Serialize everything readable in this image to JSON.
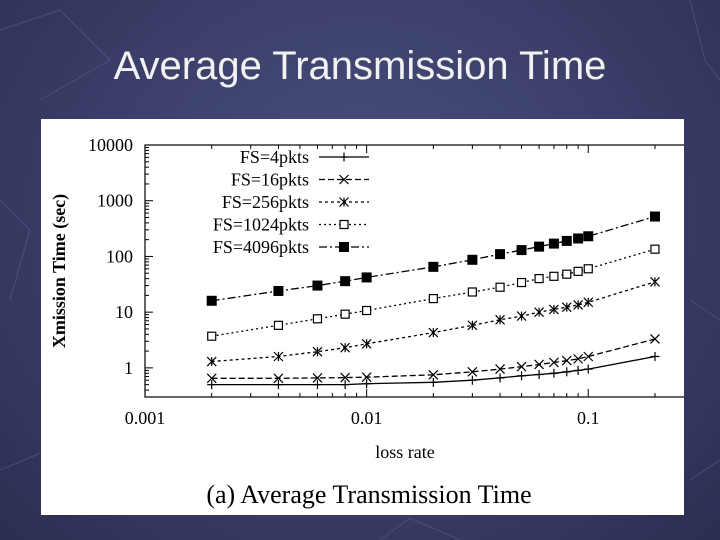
{
  "slide": {
    "title": "Average Transmission Time"
  },
  "chart_data": {
    "type": "line",
    "caption": "(a) Average Transmission Time",
    "xlabel": "loss rate",
    "ylabel": "Xmission Time (sec)",
    "x_scale": "log",
    "y_scale": "log",
    "xlim": [
      0.001,
      0.3
    ],
    "ylim": [
      0.3,
      10000
    ],
    "x_ticks": [
      {
        "value": 0.001,
        "label": "0.001"
      },
      {
        "value": 0.01,
        "label": "0.01"
      },
      {
        "value": 0.1,
        "label": "0.1"
      }
    ],
    "y_ticks": [
      {
        "value": 1,
        "label": "1"
      },
      {
        "value": 10,
        "label": "10"
      },
      {
        "value": 100,
        "label": "100"
      },
      {
        "value": 1000,
        "label": "1000"
      },
      {
        "value": 10000,
        "label": "10000"
      }
    ],
    "legend_position": "top-left",
    "series": [
      {
        "name": "FS=4pkts",
        "marker": "plus",
        "dash": "",
        "x": [
          0.002,
          0.004,
          0.006,
          0.008,
          0.01,
          0.02,
          0.03,
          0.04,
          0.05,
          0.06,
          0.07,
          0.08,
          0.09,
          0.1,
          0.2
        ],
        "y": [
          0.5,
          0.5,
          0.5,
          0.5,
          0.52,
          0.55,
          0.6,
          0.66,
          0.72,
          0.76,
          0.8,
          0.85,
          0.9,
          0.95,
          1.6
        ]
      },
      {
        "name": "FS=16pkts",
        "marker": "cross",
        "dash": "6,3",
        "x": [
          0.002,
          0.004,
          0.006,
          0.008,
          0.01,
          0.02,
          0.03,
          0.04,
          0.05,
          0.06,
          0.07,
          0.08,
          0.09,
          0.1,
          0.2
        ],
        "y": [
          0.65,
          0.65,
          0.66,
          0.67,
          0.68,
          0.75,
          0.85,
          0.95,
          1.05,
          1.15,
          1.25,
          1.35,
          1.45,
          1.6,
          3.3
        ]
      },
      {
        "name": "FS=256pkts",
        "marker": "star",
        "dash": "3,3",
        "x": [
          0.002,
          0.004,
          0.006,
          0.008,
          0.01,
          0.02,
          0.03,
          0.04,
          0.05,
          0.06,
          0.07,
          0.08,
          0.09,
          0.1,
          0.2
        ],
        "y": [
          1.3,
          1.6,
          1.95,
          2.3,
          2.7,
          4.3,
          5.8,
          7.3,
          8.5,
          10,
          11.2,
          12.3,
          13.5,
          15,
          35
        ]
      },
      {
        "name": "FS=1024pkts",
        "marker": "square-open",
        "dash": "2,3",
        "x": [
          0.002,
          0.004,
          0.006,
          0.008,
          0.01,
          0.02,
          0.03,
          0.04,
          0.05,
          0.06,
          0.07,
          0.08,
          0.09,
          0.1,
          0.2
        ],
        "y": [
          3.7,
          5.8,
          7.6,
          9.2,
          10.7,
          17.5,
          23,
          28,
          34,
          40,
          44,
          48,
          54,
          60,
          135
        ]
      },
      {
        "name": "FS=4096pkts",
        "marker": "square-filled",
        "dash": "8,3,2,3",
        "x": [
          0.002,
          0.004,
          0.006,
          0.008,
          0.01,
          0.02,
          0.03,
          0.04,
          0.05,
          0.06,
          0.07,
          0.08,
          0.09,
          0.1,
          0.2
        ],
        "y": [
          16,
          24,
          30,
          36,
          42,
          65,
          87,
          110,
          130,
          150,
          170,
          190,
          210,
          230,
          520
        ]
      }
    ]
  }
}
